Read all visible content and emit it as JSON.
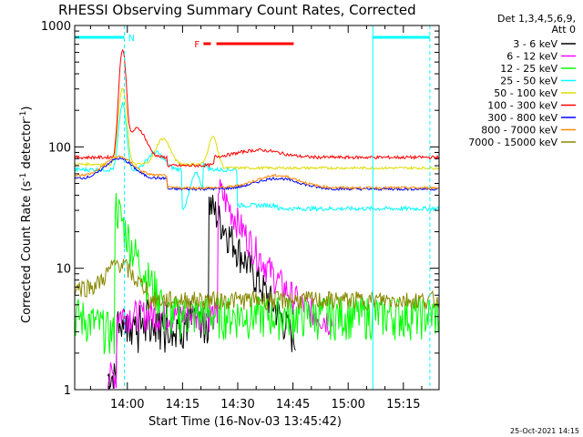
{
  "chart_data": {
    "type": "line",
    "title": "RHESSI Observing Summary Count Rates, Corrected",
    "xlabel": "Start Time (16-Nov-03 13:45:42)",
    "ylabel_main": "Corrected Count Rate (s",
    "ylabel_sup1": "-1",
    "ylabel_mid": " detector",
    "ylabel_sup2": "-1",
    "ylabel_end": ")",
    "yscale": "log",
    "ylim": [
      1,
      1000
    ],
    "xlim_minutes": [
      0,
      99
    ],
    "xtick_labels": [
      "14:00",
      "14:15",
      "14:30",
      "14:45",
      "15:00",
      "15:15"
    ],
    "ytick_labels": [
      "1",
      "10",
      "100",
      "1000"
    ],
    "legend_header": [
      "Det 1,3,4,5,6,9,",
      "Att 0"
    ],
    "legend_placement": "right",
    "footer_date": "25-Oct-2021 14:15",
    "annotations": {
      "night_marker": "N",
      "flare_marker": "F"
    },
    "series": [
      {
        "name": "3 - 6 keV",
        "color": "#000000"
      },
      {
        "name": "6 - 12 keV",
        "color": "#ff00ff"
      },
      {
        "name": "12 - 25 keV",
        "color": "#00ff00"
      },
      {
        "name": "25 - 50 keV",
        "color": "#00ffff"
      },
      {
        "name": "50 - 100 keV",
        "color": "#dddd00"
      },
      {
        "name": "100 - 300 keV",
        "color": "#ff0000"
      },
      {
        "name": "300 - 800 keV",
        "color": "#0000ff"
      },
      {
        "name": "800 - 7000 keV",
        "color": "#ff8800"
      },
      {
        "name": "7000 - 15000 keV",
        "color": "#888800"
      }
    ]
  }
}
